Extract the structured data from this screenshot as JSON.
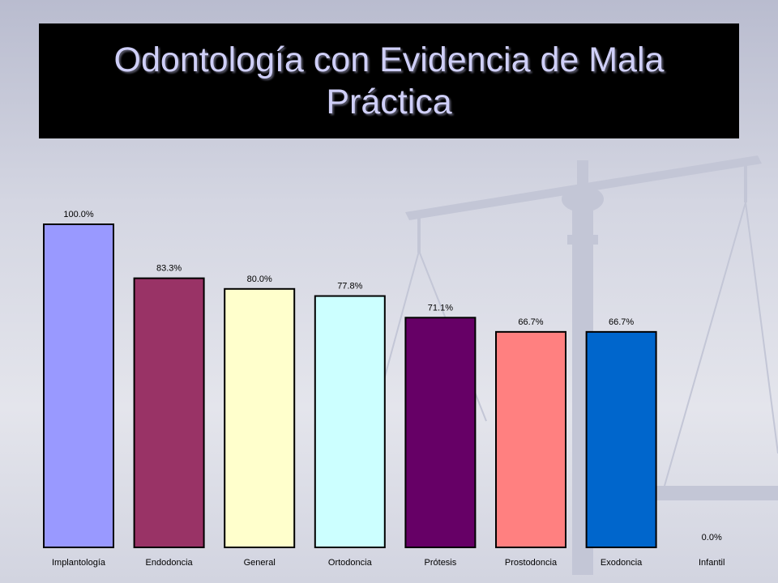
{
  "title": "Odontología con Evidencia de Mala Práctica",
  "colors": {
    "title_background": "#000000",
    "title_text": "#cfcff8"
  },
  "chart_data": {
    "type": "bar",
    "title": "Odontología con Evidencia de Mala Práctica",
    "xlabel": "",
    "ylabel": "",
    "ylim": [
      0,
      100
    ],
    "grid": false,
    "legend": "none",
    "categories": [
      "Implantología",
      "Endodoncia",
      "General",
      "Ortodoncia",
      "Prótesis",
      "Prostodoncia",
      "Exodoncia",
      "Infantil"
    ],
    "values": [
      100.0,
      83.3,
      80.0,
      77.8,
      71.1,
      66.7,
      66.7,
      0.0
    ],
    "data_labels": [
      "100.0%",
      "83.3%",
      "80.0%",
      "77.8%",
      "71.1%",
      "66.7%",
      "66.7%",
      "0.0%"
    ],
    "bar_colors": [
      "#9999ff",
      "#993366",
      "#ffffcc",
      "#ccffff",
      "#660066",
      "#ff8080",
      "#0066cc",
      "#c0c0c0"
    ]
  }
}
